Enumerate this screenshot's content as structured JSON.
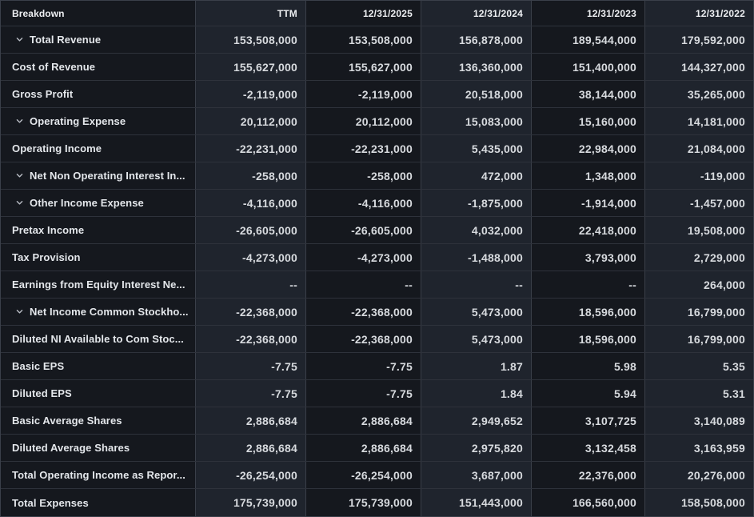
{
  "colors": {
    "column_dark_bg": "#15181e",
    "column_light_bg": "#1f242d",
    "row_border": "#2e323b",
    "column_border": "#3a3f49",
    "header_text": "#edeff2",
    "label_text": "#e4e7eb",
    "value_text": "#d7dade",
    "chevron": "#b9bdc5"
  },
  "table": {
    "columns": [
      "Breakdown",
      "TTM",
      "12/31/2025",
      "12/31/2024",
      "12/31/2023",
      "12/31/2022"
    ],
    "rows": [
      {
        "label": "Total Revenue",
        "expandable": true,
        "values": [
          "153,508,000",
          "153,508,000",
          "156,878,000",
          "189,544,000",
          "179,592,000"
        ]
      },
      {
        "label": "Cost of Revenue",
        "expandable": false,
        "values": [
          "155,627,000",
          "155,627,000",
          "136,360,000",
          "151,400,000",
          "144,327,000"
        ]
      },
      {
        "label": "Gross Profit",
        "expandable": false,
        "values": [
          "-2,119,000",
          "-2,119,000",
          "20,518,000",
          "38,144,000",
          "35,265,000"
        ]
      },
      {
        "label": "Operating Expense",
        "expandable": true,
        "values": [
          "20,112,000",
          "20,112,000",
          "15,083,000",
          "15,160,000",
          "14,181,000"
        ]
      },
      {
        "label": "Operating Income",
        "expandable": false,
        "values": [
          "-22,231,000",
          "-22,231,000",
          "5,435,000",
          "22,984,000",
          "21,084,000"
        ]
      },
      {
        "label": "Net Non Operating Interest In...",
        "expandable": true,
        "values": [
          "-258,000",
          "-258,000",
          "472,000",
          "1,348,000",
          "-119,000"
        ]
      },
      {
        "label": "Other Income Expense",
        "expandable": true,
        "values": [
          "-4,116,000",
          "-4,116,000",
          "-1,875,000",
          "-1,914,000",
          "-1,457,000"
        ]
      },
      {
        "label": "Pretax Income",
        "expandable": false,
        "values": [
          "-26,605,000",
          "-26,605,000",
          "4,032,000",
          "22,418,000",
          "19,508,000"
        ]
      },
      {
        "label": "Tax Provision",
        "expandable": false,
        "values": [
          "-4,273,000",
          "-4,273,000",
          "-1,488,000",
          "3,793,000",
          "2,729,000"
        ]
      },
      {
        "label": "Earnings from Equity Interest Ne...",
        "expandable": false,
        "values": [
          "--",
          "--",
          "--",
          "--",
          "264,000"
        ]
      },
      {
        "label": "Net Income Common Stockho...",
        "expandable": true,
        "values": [
          "-22,368,000",
          "-22,368,000",
          "5,473,000",
          "18,596,000",
          "16,799,000"
        ]
      },
      {
        "label": "Diluted NI Available to Com Stoc...",
        "expandable": false,
        "values": [
          "-22,368,000",
          "-22,368,000",
          "5,473,000",
          "18,596,000",
          "16,799,000"
        ]
      },
      {
        "label": "Basic EPS",
        "expandable": false,
        "values": [
          "-7.75",
          "-7.75",
          "1.87",
          "5.98",
          "5.35"
        ]
      },
      {
        "label": "Diluted EPS",
        "expandable": false,
        "values": [
          "-7.75",
          "-7.75",
          "1.84",
          "5.94",
          "5.31"
        ]
      },
      {
        "label": "Basic Average Shares",
        "expandable": false,
        "values": [
          "2,886,684",
          "2,886,684",
          "2,949,652",
          "3,107,725",
          "3,140,089"
        ]
      },
      {
        "label": "Diluted Average Shares",
        "expandable": false,
        "values": [
          "2,886,684",
          "2,886,684",
          "2,975,820",
          "3,132,458",
          "3,163,959"
        ]
      },
      {
        "label": "Total Operating Income as Repor...",
        "expandable": false,
        "values": [
          "-26,254,000",
          "-26,254,000",
          "3,687,000",
          "22,376,000",
          "20,276,000"
        ]
      },
      {
        "label": "Total Expenses",
        "expandable": false,
        "values": [
          "175,739,000",
          "175,739,000",
          "151,443,000",
          "166,560,000",
          "158,508,000"
        ]
      }
    ]
  }
}
